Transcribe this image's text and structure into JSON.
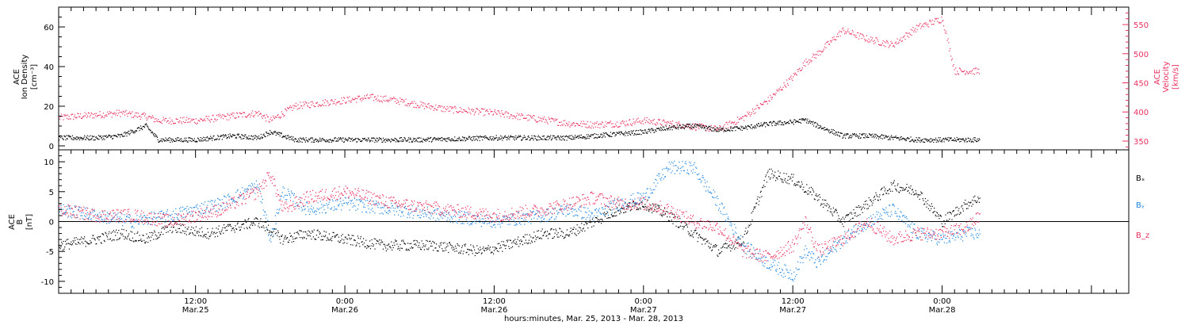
{
  "figure": {
    "xlabel": "hours:minutes, Mar. 25, 2013 - Mar. 28, 2013",
    "x_tick_times": [
      "12:00",
      "0:00",
      "12:00",
      "0:00",
      "12:00",
      "0:00"
    ],
    "x_tick_dates": [
      "Mar.25",
      "Mar.26",
      "Mar.26",
      "Mar.27",
      "Mar.27",
      "Mar.28"
    ]
  },
  "colors": {
    "density": "#000000",
    "velocity": "#e8315f",
    "bx": "#000000",
    "by": "#1f86e0",
    "bz": "#e8315f"
  },
  "chart_data": [
    {
      "type": "scatter",
      "panel": "top",
      "ylabel_left": [
        "ACE",
        "Ion Density",
        "[cm⁻³]"
      ],
      "ylabel_right": [
        "ACE",
        "Velocity",
        "[km/s]"
      ],
      "x_range": [
        "2013-03-25T01:00",
        "2013-03-28T15:00"
      ],
      "ylim_left": [
        -2,
        70
      ],
      "ylim_right": [
        335,
        580
      ],
      "left_ticks": [
        0,
        20,
        40,
        60
      ],
      "right_ticks": [
        350,
        400,
        450,
        500,
        550
      ],
      "series": [
        {
          "axis": "left",
          "x": [
            "2013-03-25T01:00",
            "2013-03-25T04:00",
            "2013-03-25T06:00",
            "2013-03-25T08:00",
            "2013-03-25T09:00",
            "2013-03-25T12:00",
            "2013-03-25T15:00",
            "2013-03-25T17:00",
            "2013-03-25T18:00",
            "2013-03-25T20:00",
            "2013-03-26T00:00",
            "2013-03-26T06:00",
            "2013-03-26T12:00",
            "2013-03-26T18:00",
            "2013-03-26T20:00",
            "2013-03-26T22:00",
            "2013-03-27T00:00",
            "2013-03-27T02:00",
            "2013-03-27T04:00",
            "2013-03-27T06:00",
            "2013-03-27T08:00",
            "2013-03-27T10:00",
            "2013-03-27T12:00",
            "2013-03-27T13:00",
            "2013-03-27T14:00",
            "2013-03-27T16:00",
            "2013-03-27T18:00",
            "2013-03-27T20:00",
            "2013-03-27T22:00",
            "2013-03-28T00:00",
            "2013-03-28T02:00",
            "2013-03-28T03:00"
          ],
          "values": [
            4,
            4,
            5,
            10,
            3,
            3,
            5,
            4,
            7,
            3,
            3,
            3,
            4,
            4,
            5,
            6,
            7,
            9,
            10,
            8,
            9,
            11,
            12,
            13,
            10,
            5,
            5,
            4,
            3,
            3,
            3,
            3
          ]
        },
        {
          "axis": "right",
          "x": [
            "2013-03-25T01:00",
            "2013-03-25T04:00",
            "2013-03-25T06:00",
            "2013-03-25T08:00",
            "2013-03-25T09:00",
            "2013-03-25T12:00",
            "2013-03-25T15:00",
            "2013-03-25T17:00",
            "2013-03-25T18:00",
            "2013-03-25T20:00",
            "2013-03-26T00:00",
            "2013-03-26T02:00",
            "2013-03-26T04:00",
            "2013-03-26T06:00",
            "2013-03-26T08:00",
            "2013-03-26T12:00",
            "2013-03-26T18:00",
            "2013-03-26T20:00",
            "2013-03-26T22:00",
            "2013-03-27T00:00",
            "2013-03-27T02:00",
            "2013-03-27T04:00",
            "2013-03-27T06:00",
            "2013-03-27T08:00",
            "2013-03-27T10:00",
            "2013-03-27T12:00",
            "2013-03-27T13:00",
            "2013-03-27T14:00",
            "2013-03-27T16:00",
            "2013-03-27T18:00",
            "2013-03-27T20:00",
            "2013-03-27T22:00",
            "2013-03-28T00:00",
            "2013-03-28T01:00",
            "2013-03-28T03:00"
          ],
          "values": [
            390,
            395,
            398,
            392,
            385,
            385,
            393,
            398,
            385,
            410,
            420,
            425,
            420,
            412,
            405,
            398,
            380,
            378,
            380,
            385,
            380,
            375,
            370,
            390,
            420,
            460,
            485,
            500,
            540,
            525,
            515,
            545,
            560,
            470,
            470
          ]
        }
      ]
    },
    {
      "type": "scatter",
      "panel": "bottom",
      "ylabel_left": [
        "ACE",
        "B",
        "[nT]"
      ],
      "x_range": [
        "2013-03-25T01:00",
        "2013-03-28T15:00"
      ],
      "ylim": [
        -12,
        12
      ],
      "y_ticks": [
        -10,
        -5,
        0,
        5,
        10
      ],
      "legend": "right",
      "series": [
        {
          "name": "Bₓ",
          "x": [
            "2013-03-25T01:00",
            "2013-03-25T04:00",
            "2013-03-25T06:00",
            "2013-03-25T08:00",
            "2013-03-25T10:00",
            "2013-03-25T13:00",
            "2013-03-25T17:00",
            "2013-03-25T19:00",
            "2013-03-25T21:00",
            "2013-03-26T00:00",
            "2013-03-26T03:00",
            "2013-03-26T07:00",
            "2013-03-26T11:00",
            "2013-03-26T13:00",
            "2013-03-26T16:00",
            "2013-03-26T18:00",
            "2013-03-26T20:00",
            "2013-03-26T22:00",
            "2013-03-27T00:00",
            "2013-03-27T02:00",
            "2013-03-27T04:00",
            "2013-03-27T06:00",
            "2013-03-27T08:00",
            "2013-03-27T10:00",
            "2013-03-27T12:00",
            "2013-03-27T14:00",
            "2013-03-27T16:00",
            "2013-03-27T18:00",
            "2013-03-27T20:00",
            "2013-03-27T22:00",
            "2013-03-28T00:00",
            "2013-03-28T02:00",
            "2013-03-28T03:00"
          ],
          "values": [
            -4,
            -3,
            -2,
            -3,
            -1,
            -2,
            0,
            -3,
            -2,
            -3,
            -4,
            -4,
            -5,
            -4,
            -2,
            -2,
            0,
            2,
            3,
            1,
            -2,
            -5,
            -3,
            8,
            7,
            4,
            0,
            3,
            6,
            5,
            0,
            3,
            4
          ]
        },
        {
          "name": "Bᵧ",
          "x": [
            "2013-03-25T01:00",
            "2013-03-25T04:00",
            "2013-03-25T07:00",
            "2013-03-25T10:00",
            "2013-03-25T14:00",
            "2013-03-25T17:00",
            "2013-03-25T18:00",
            "2013-03-25T19:00",
            "2013-03-25T21:00",
            "2013-03-26T00:00",
            "2013-03-26T04:00",
            "2013-03-26T08:00",
            "2013-03-26T12:00",
            "2013-03-26T16:00",
            "2013-03-26T18:00",
            "2013-03-26T20:00",
            "2013-03-26T22:00",
            "2013-03-27T00:00",
            "2013-03-27T02:00",
            "2013-03-27T04:00",
            "2013-03-27T06:00",
            "2013-03-27T08:00",
            "2013-03-27T10:00",
            "2013-03-27T12:00",
            "2013-03-27T13:00",
            "2013-03-27T14:00",
            "2013-03-27T16:00",
            "2013-03-27T18:00",
            "2013-03-27T20:00",
            "2013-03-27T22:00",
            "2013-03-28T00:00",
            "2013-03-28T02:00",
            "2013-03-28T03:00"
          ],
          "values": [
            2,
            1,
            0,
            1,
            3,
            6,
            -3,
            5,
            2,
            3,
            2,
            1,
            0,
            1,
            2,
            1,
            3,
            4,
            9,
            9,
            3,
            -4,
            -7,
            -9,
            -5,
            -7,
            -3,
            0,
            2,
            -2,
            -3,
            -2,
            -2
          ]
        },
        {
          "name": "B_z",
          "x": [
            "2013-03-25T01:00",
            "2013-03-25T04:00",
            "2013-03-25T07:00",
            "2013-03-25T10:00",
            "2013-03-25T14:00",
            "2013-03-25T17:00",
            "2013-03-25T18:00",
            "2013-03-25T19:00",
            "2013-03-25T21:00",
            "2013-03-26T00:00",
            "2013-03-26T04:00",
            "2013-03-26T08:00",
            "2013-03-26T12:00",
            "2013-03-26T16:00",
            "2013-03-26T18:00",
            "2013-03-26T20:00",
            "2013-03-26T22:00",
            "2013-03-27T00:00",
            "2013-03-27T02:00",
            "2013-03-27T04:00",
            "2013-03-27T06:00",
            "2013-03-27T08:00",
            "2013-03-27T10:00",
            "2013-03-27T12:00",
            "2013-03-27T13:00",
            "2013-03-27T14:00",
            "2013-03-27T16:00",
            "2013-03-27T18:00",
            "2013-03-27T20:00",
            "2013-03-27T22:00",
            "2013-03-28T00:00",
            "2013-03-28T02:00",
            "2013-03-28T03:00"
          ],
          "values": [
            2,
            1,
            1,
            0,
            2,
            5,
            8,
            2,
            4,
            5,
            3,
            2,
            1,
            2,
            3,
            4,
            3,
            3,
            2,
            0,
            -1,
            -5,
            -6,
            -4,
            0,
            -5,
            -3,
            0,
            -3,
            -2,
            -2,
            -1,
            1
          ]
        }
      ]
    }
  ]
}
